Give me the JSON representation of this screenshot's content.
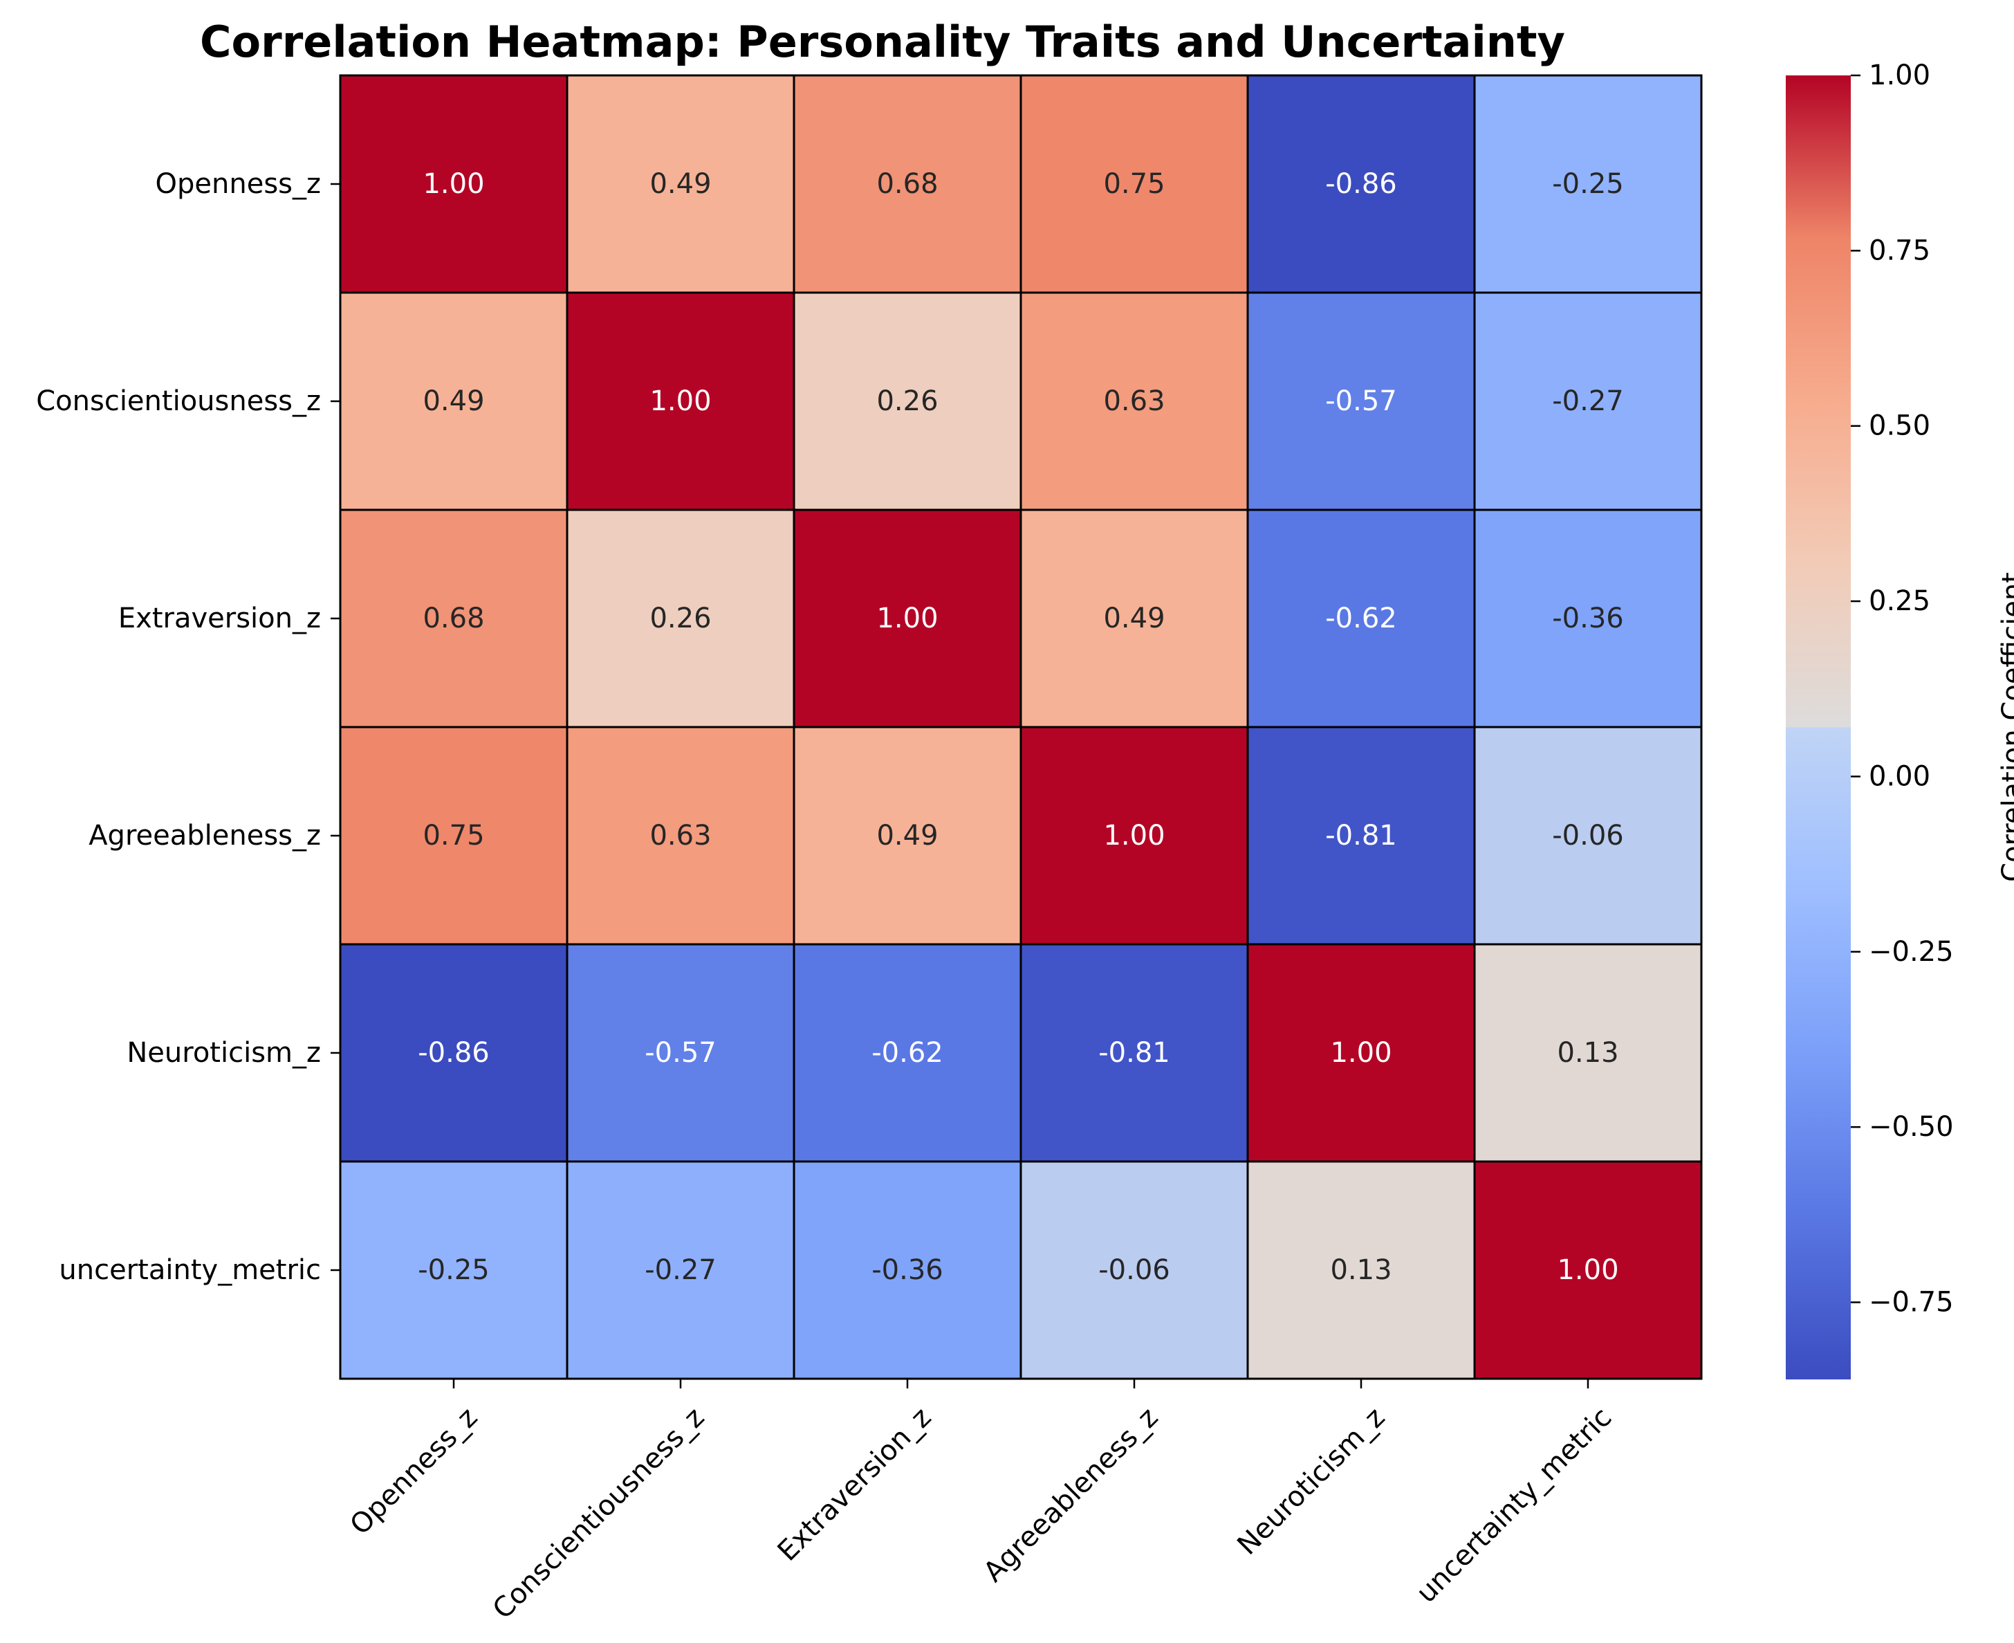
{
  "chart_data": {
    "type": "heatmap",
    "title": "Correlation Heatmap: Personality Traits and Uncertainty",
    "row_labels": [
      "Openness_z",
      "Conscientiousness_z",
      "Extraversion_z",
      "Agreeableness_z",
      "Neuroticism_z",
      "uncertainty_metric"
    ],
    "col_labels": [
      "Openness_z",
      "Conscientiousness_z",
      "Extraversion_z",
      "Agreeableness_z",
      "Neuroticism_z",
      "uncertainty_metric"
    ],
    "values": [
      [
        1.0,
        0.49,
        0.68,
        0.75,
        -0.86,
        -0.25
      ],
      [
        0.49,
        1.0,
        0.26,
        0.63,
        -0.57,
        -0.27
      ],
      [
        0.68,
        0.26,
        1.0,
        0.49,
        -0.62,
        -0.36
      ],
      [
        0.75,
        0.63,
        0.49,
        1.0,
        -0.81,
        -0.06
      ],
      [
        -0.86,
        -0.57,
        -0.62,
        -0.81,
        1.0,
        0.13
      ],
      [
        -0.25,
        -0.27,
        -0.36,
        -0.06,
        0.13,
        1.0
      ]
    ],
    "annotation_format": "0.00",
    "colormap": "coolwarm",
    "vmin": -0.86,
    "vmax": 1.0,
    "colorbar": {
      "label": "Correlation Coefficient",
      "ticks": [
        1.0,
        0.75,
        0.5,
        0.25,
        0.0,
        -0.25,
        -0.5,
        -0.75
      ],
      "tick_labels": [
        "1.00",
        "0.75",
        "0.50",
        "0.25",
        "0.00",
        "−0.25",
        "−0.50",
        "−0.75"
      ]
    },
    "cell_border_color": "#000000",
    "x_tick_rotation": 45
  }
}
